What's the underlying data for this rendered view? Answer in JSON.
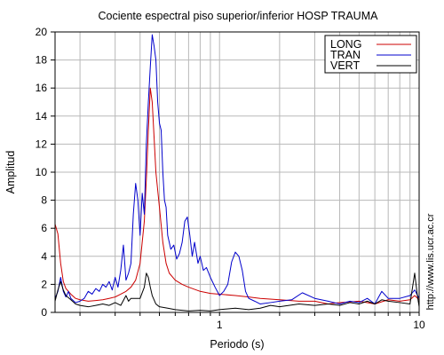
{
  "chart_data": {
    "type": "line",
    "title": "Cociente espectral piso superior/inferior  HOSP TRAUMA",
    "xlabel": "Periodo (s)",
    "ylabel": "Amplitud",
    "xscale": "log",
    "xlim": [
      0.15,
      10
    ],
    "ylim": [
      0,
      20
    ],
    "yticks": [
      0,
      2,
      4,
      6,
      8,
      10,
      12,
      14,
      16,
      18,
      20
    ],
    "xticks_labeled": [
      1,
      10
    ],
    "x_grid": [
      0.2,
      0.3,
      0.4,
      0.5,
      0.6,
      0.7,
      0.8,
      0.9,
      1,
      2,
      3,
      4,
      5,
      6,
      7,
      8,
      9,
      10
    ],
    "grid": true,
    "legend_position": "top-right",
    "watermark": "http://www.lis.ucr.ac.cr",
    "series": [
      {
        "name": "LONG",
        "color": "#cc0000",
        "points": [
          [
            0.15,
            6.3
          ],
          [
            0.155,
            5.6
          ],
          [
            0.16,
            3.5
          ],
          [
            0.165,
            2.2
          ],
          [
            0.17,
            1.7
          ],
          [
            0.18,
            1.3
          ],
          [
            0.19,
            1.0
          ],
          [
            0.2,
            0.9
          ],
          [
            0.22,
            0.8
          ],
          [
            0.24,
            0.85
          ],
          [
            0.26,
            0.9
          ],
          [
            0.28,
            1.0
          ],
          [
            0.3,
            1.1
          ],
          [
            0.32,
            1.3
          ],
          [
            0.34,
            1.5
          ],
          [
            0.36,
            1.8
          ],
          [
            0.38,
            2.3
          ],
          [
            0.4,
            3.5
          ],
          [
            0.42,
            6.5
          ],
          [
            0.43,
            9.5
          ],
          [
            0.44,
            13.0
          ],
          [
            0.45,
            16.0
          ],
          [
            0.46,
            15.0
          ],
          [
            0.47,
            12.5
          ],
          [
            0.48,
            10.0
          ],
          [
            0.5,
            7.5
          ],
          [
            0.52,
            5.0
          ],
          [
            0.54,
            3.5
          ],
          [
            0.56,
            2.8
          ],
          [
            0.6,
            2.3
          ],
          [
            0.65,
            2.0
          ],
          [
            0.7,
            1.8
          ],
          [
            0.8,
            1.5
          ],
          [
            0.9,
            1.35
          ],
          [
            1.0,
            1.3
          ],
          [
            1.2,
            1.2
          ],
          [
            1.4,
            1.1
          ],
          [
            1.6,
            1.0
          ],
          [
            2.0,
            0.9
          ],
          [
            2.5,
            0.8
          ],
          [
            3.0,
            0.8
          ],
          [
            3.5,
            0.6
          ],
          [
            4.0,
            0.7
          ],
          [
            5.0,
            0.8
          ],
          [
            6.0,
            0.6
          ],
          [
            7.0,
            0.9
          ],
          [
            8.0,
            0.8
          ],
          [
            9.0,
            0.9
          ],
          [
            9.5,
            1.2
          ],
          [
            10.0,
            0.9
          ]
        ]
      },
      {
        "name": "TRAN",
        "color": "#0000cc",
        "points": [
          [
            0.15,
            1.0
          ],
          [
            0.155,
            1.5
          ],
          [
            0.16,
            2.5
          ],
          [
            0.165,
            1.5
          ],
          [
            0.17,
            1.1
          ],
          [
            0.175,
            1.5
          ],
          [
            0.18,
            1.0
          ],
          [
            0.19,
            0.7
          ],
          [
            0.2,
            0.8
          ],
          [
            0.21,
            1.0
          ],
          [
            0.22,
            1.5
          ],
          [
            0.23,
            1.3
          ],
          [
            0.24,
            1.7
          ],
          [
            0.25,
            1.5
          ],
          [
            0.26,
            2.0
          ],
          [
            0.27,
            1.8
          ],
          [
            0.28,
            2.2
          ],
          [
            0.29,
            1.6
          ],
          [
            0.3,
            2.5
          ],
          [
            0.31,
            1.8
          ],
          [
            0.32,
            3.0
          ],
          [
            0.33,
            4.8
          ],
          [
            0.34,
            2.3
          ],
          [
            0.35,
            2.8
          ],
          [
            0.36,
            3.5
          ],
          [
            0.37,
            7.0
          ],
          [
            0.38,
            9.2
          ],
          [
            0.39,
            8.0
          ],
          [
            0.4,
            5.5
          ],
          [
            0.41,
            8.5
          ],
          [
            0.42,
            7.0
          ],
          [
            0.43,
            12.0
          ],
          [
            0.44,
            15.0
          ],
          [
            0.45,
            17.5
          ],
          [
            0.46,
            19.8
          ],
          [
            0.47,
            19.0
          ],
          [
            0.48,
            18.0
          ],
          [
            0.49,
            15.0
          ],
          [
            0.5,
            13.5
          ],
          [
            0.51,
            13.0
          ],
          [
            0.52,
            10.0
          ],
          [
            0.53,
            8.0
          ],
          [
            0.54,
            7.5
          ],
          [
            0.55,
            5.5
          ],
          [
            0.56,
            5.0
          ],
          [
            0.57,
            4.5
          ],
          [
            0.59,
            4.8
          ],
          [
            0.61,
            3.8
          ],
          [
            0.63,
            4.2
          ],
          [
            0.65,
            5.0
          ],
          [
            0.67,
            6.5
          ],
          [
            0.69,
            6.8
          ],
          [
            0.71,
            5.5
          ],
          [
            0.73,
            4.0
          ],
          [
            0.75,
            5.0
          ],
          [
            0.78,
            3.5
          ],
          [
            0.8,
            4.0
          ],
          [
            0.83,
            3.0
          ],
          [
            0.86,
            3.2
          ],
          [
            0.9,
            2.5
          ],
          [
            0.95,
            1.8
          ],
          [
            1.0,
            1.2
          ],
          [
            1.05,
            1.5
          ],
          [
            1.1,
            2.0
          ],
          [
            1.15,
            3.6
          ],
          [
            1.2,
            4.3
          ],
          [
            1.25,
            4.0
          ],
          [
            1.3,
            3.0
          ],
          [
            1.35,
            1.5
          ],
          [
            1.4,
            1.0
          ],
          [
            1.5,
            0.8
          ],
          [
            1.6,
            0.6
          ],
          [
            1.8,
            0.7
          ],
          [
            2.0,
            0.8
          ],
          [
            2.3,
            0.9
          ],
          [
            2.6,
            1.4
          ],
          [
            3.0,
            1.0
          ],
          [
            3.5,
            0.8
          ],
          [
            4.0,
            0.6
          ],
          [
            4.5,
            0.8
          ],
          [
            5.0,
            0.7
          ],
          [
            5.5,
            1.0
          ],
          [
            6.0,
            0.6
          ],
          [
            6.5,
            1.5
          ],
          [
            7.0,
            1.0
          ],
          [
            8.0,
            1.0
          ],
          [
            9.0,
            1.2
          ],
          [
            9.5,
            1.6
          ],
          [
            10.0,
            1.0
          ]
        ]
      },
      {
        "name": "VERT",
        "color": "#000000",
        "points": [
          [
            0.15,
            0.8
          ],
          [
            0.155,
            1.6
          ],
          [
            0.16,
            2.2
          ],
          [
            0.165,
            1.6
          ],
          [
            0.17,
            1.2
          ],
          [
            0.18,
            0.9
          ],
          [
            0.19,
            0.6
          ],
          [
            0.2,
            0.5
          ],
          [
            0.22,
            0.4
          ],
          [
            0.24,
            0.5
          ],
          [
            0.26,
            0.6
          ],
          [
            0.28,
            0.5
          ],
          [
            0.3,
            0.7
          ],
          [
            0.32,
            0.5
          ],
          [
            0.34,
            1.2
          ],
          [
            0.35,
            0.8
          ],
          [
            0.36,
            1.0
          ],
          [
            0.38,
            1.0
          ],
          [
            0.4,
            1.0
          ],
          [
            0.42,
            1.8
          ],
          [
            0.43,
            2.8
          ],
          [
            0.44,
            2.5
          ],
          [
            0.45,
            1.8
          ],
          [
            0.46,
            1.2
          ],
          [
            0.48,
            0.6
          ],
          [
            0.5,
            0.4
          ],
          [
            0.55,
            0.3
          ],
          [
            0.6,
            0.2
          ],
          [
            0.7,
            0.1
          ],
          [
            0.8,
            0.15
          ],
          [
            0.9,
            0.1
          ],
          [
            1.0,
            0.2
          ],
          [
            1.2,
            0.3
          ],
          [
            1.4,
            0.2
          ],
          [
            1.6,
            0.3
          ],
          [
            1.8,
            0.5
          ],
          [
            2.0,
            0.4
          ],
          [
            2.5,
            0.6
          ],
          [
            3.0,
            0.5
          ],
          [
            3.5,
            0.6
          ],
          [
            4.0,
            0.5
          ],
          [
            4.5,
            0.7
          ],
          [
            5.0,
            0.6
          ],
          [
            5.5,
            0.8
          ],
          [
            6.0,
            0.6
          ],
          [
            6.5,
            0.9
          ],
          [
            7.0,
            0.8
          ],
          [
            8.0,
            0.7
          ],
          [
            9.0,
            0.6
          ],
          [
            9.5,
            2.8
          ],
          [
            9.8,
            1.2
          ],
          [
            10.0,
            0.4
          ]
        ]
      }
    ]
  }
}
